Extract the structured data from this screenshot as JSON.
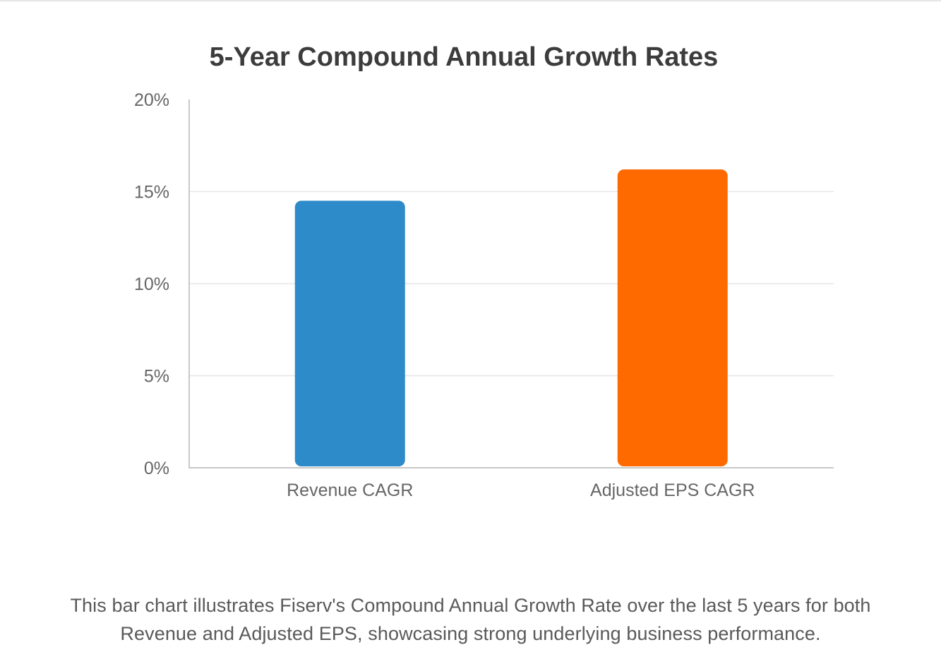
{
  "chart_data": {
    "type": "bar",
    "title": "5-Year Compound Annual Growth Rates",
    "xlabel": "",
    "ylabel": "",
    "categories": [
      "Revenue CAGR",
      "Adjusted EPS CAGR"
    ],
    "values": [
      14.5,
      16.2
    ],
    "colors": [
      "#2e8bc9",
      "#ff6a00"
    ],
    "ylim": [
      0,
      20
    ],
    "yticks": [
      0,
      5,
      10,
      15,
      20
    ],
    "ytick_labels": [
      "0%",
      "5%",
      "10%",
      "15%",
      "20%"
    ],
    "grid": true,
    "legend": "none"
  },
  "caption": {
    "line1": "This bar chart illustrates Fiserv's Compound Annual Growth Rate over the last 5 years for both",
    "line2": "Revenue and Adjusted EPS, showcasing strong underlying business performance."
  },
  "colors": {
    "title": "#3c3c3c",
    "axis_text": "#666666",
    "grid": "#e5e5e5",
    "axis": "#c8c8c8"
  }
}
